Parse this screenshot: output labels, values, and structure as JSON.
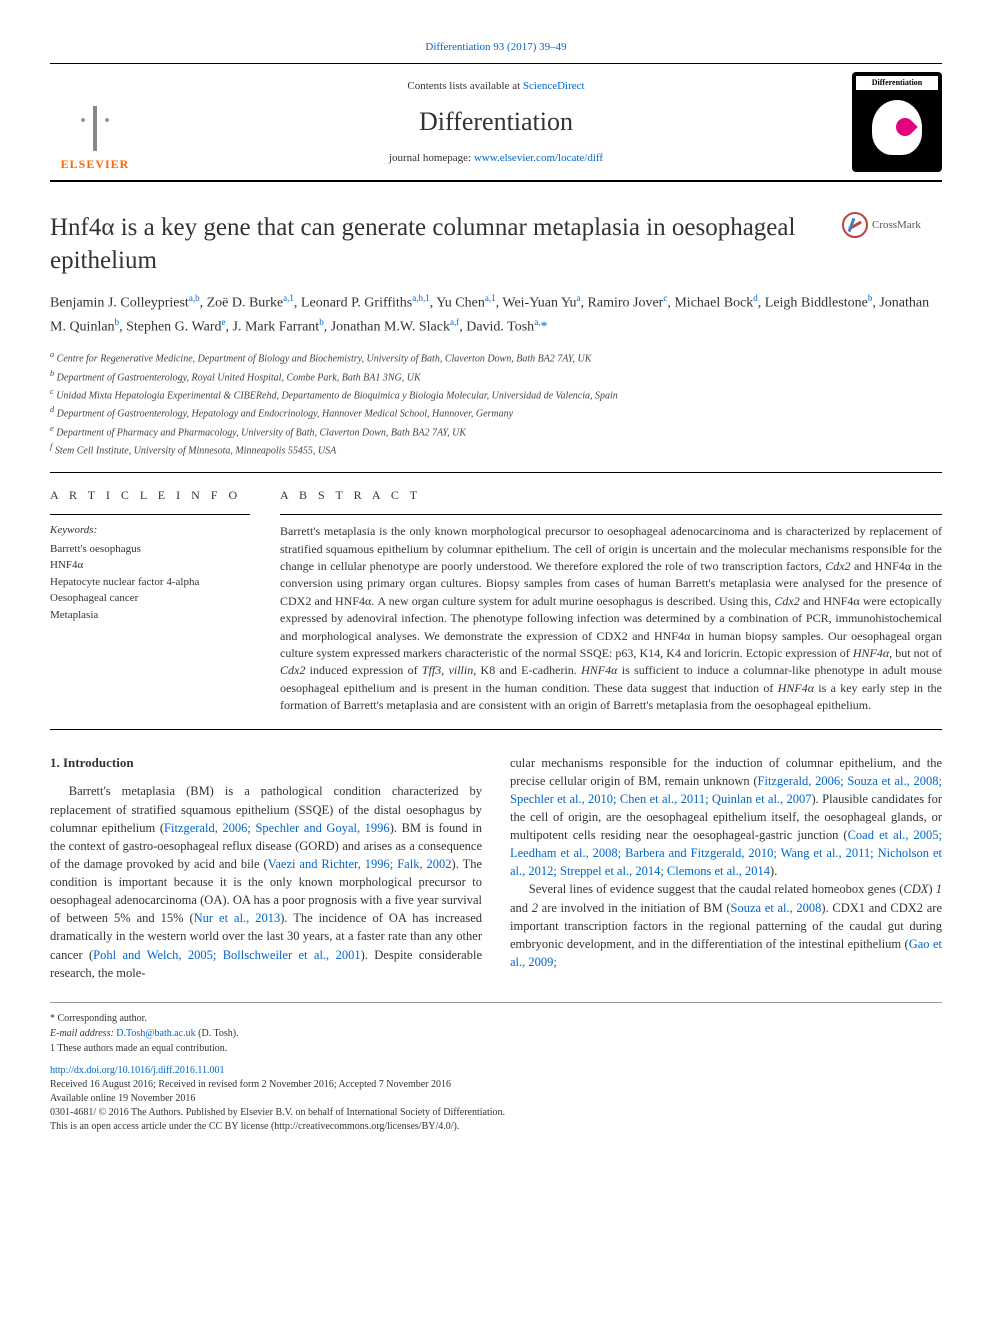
{
  "top_citation": "Differentiation 93 (2017) 39–49",
  "header": {
    "contents_prefix": "Contents lists available at ",
    "contents_link": "ScienceDirect",
    "journal": "Differentiation",
    "homepage_prefix": "journal homepage: ",
    "homepage_url": "www.elsevier.com/locate/diff",
    "elsevier_label": "ELSEVIER",
    "right_label": "Differentiation"
  },
  "crossmark_label": "CrossMark",
  "title": "Hnf4α is a key gene that can generate columnar metaplasia in oesophageal epithelium",
  "authors_html": "Benjamin J. Colleypriest<sup>a,b</sup>, Zoë D. Burke<sup>a,1</sup>, Leonard P. Griffiths<sup>a,b,1</sup>, Yu Chen<sup>a,1</sup>, Wei-Yuan Yu<sup>a</sup>, Ramiro Jover<sup>c</sup>, Michael Bock<sup>d</sup>, Leigh Biddlestone<sup>b</sup>, Jonathan M. Quinlan<sup>b</sup>, Stephen G. Ward<sup>e</sup>, J. Mark Farrant<sup>b</sup>, Jonathan M.W. Slack<sup>a,f</sup>, David. Tosh<sup>a,</sup><a>*</a>",
  "affiliations": [
    "a Centre for Regenerative Medicine, Department of Biology and Biochemistry, University of Bath, Claverton Down, Bath BA2 7AY, UK",
    "b Department of Gastroenterology, Royal United Hospital, Combe Park, Bath BA1 3NG, UK",
    "c Unidad Mixta Hepatologia Experimental & CIBERehd, Departamento de Bioquimica y Biologia Molecular, Universidad de Valencia, Spain",
    "d Department of Gastroenterology, Hepatology and Endocrinology, Hannover Medical School, Hannover, Germany",
    "e Department of Pharmacy and Pharmacology, University of Bath, Claverton Down, Bath BA2 7AY, UK",
    "f Stem Cell Institute, University of Minnesota, Minneapolis 55455, USA"
  ],
  "article_info_heading": "A R T I C L E  I N F O",
  "keywords_label": "Keywords:",
  "keywords": [
    "Barrett's oesophagus",
    "HNF4α",
    "Hepatocyte nuclear factor 4-alpha",
    "Oesophageal cancer",
    "Metaplasia"
  ],
  "abstract_heading": "A B S T R A C T",
  "abstract": "Barrett's metaplasia is the only known morphological precursor to oesophageal adenocarcinoma and is characterized by replacement of stratified squamous epithelium by columnar epithelium. The cell of origin is uncertain and the molecular mechanisms responsible for the change in cellular phenotype are poorly understood. We therefore explored the role of two transcription factors, Cdx2 and HNF4α in the conversion using primary organ cultures. Biopsy samples from cases of human Barrett's metaplasia were analysed for the presence of CDX2 and HNF4α. A new organ culture system for adult murine oesophagus is described. Using this, Cdx2 and HNF4α were ectopically expressed by adenoviral infection. The phenotype following infection was determined by a combination of PCR, immunohistochemical and morphological analyses. We demonstrate the expression of CDX2 and HNF4α in human biopsy samples. Our oesophageal organ culture system expressed markers characteristic of the normal SSQE: p63, K14, K4 and loricrin. Ectopic expression of HNF4α, but not of Cdx2 induced expression of Tff3, villin, K8 and E-cadherin. HNF4α is sufficient to induce a columnar-like phenotype in adult mouse oesophageal epithelium and is present in the human condition. These data suggest that induction of HNF4α is a key early step in the formation of Barrett's metaplasia and are consistent with an origin of Barrett's metaplasia from the oesophageal epithelium.",
  "intro_heading": "1. Introduction",
  "col1_html": "Barrett's metaplasia (BM) is a pathological condition characterized by replacement of stratified squamous epithelium (SSQE) of the distal oesophagus by columnar epithelium (<a>Fitzgerald, 2006; Spechler and Goyal, 1996</a>). BM is found in the context of gastro-oesophageal reflux disease (GORD) and arises as a consequence of the damage provoked by acid and bile (<a>Vaezi and Richter, 1996; Falk, 2002</a>). The condition is important because it is the only known morphological precursor to oesophageal adenocarcinoma (OA). OA has a poor prognosis with a five year survival of between 5% and 15% (<a>Nur et al., 2013</a>). The incidence of OA has increased dramatically in the western world over the last 30 years, at a faster rate than any other cancer (<a>Pohl and Welch, 2005; Bollschweiler et al., 2001</a>). Despite considerable research, the mole-",
  "col2_html": "cular mechanisms responsible for the induction of columnar epithelium, and the precise cellular origin of BM, remain unknown (<a>Fitzgerald, 2006; Souza et al., 2008; Spechler et al., 2010; Chen et al., 2011; Quinlan et al., 2007</a>). Plausible candidates for the cell of origin, are the oesophageal epithelium itself, the oesophageal glands, or multipotent cells residing near the oesophageal-gastric junction (<a>Coad et al., 2005; Leedham et al., 2008; Barbera and Fitzgerald, 2010; Wang et al., 2011; Nicholson et al., 2012; Streppel et al., 2014; Clemons et al., 2014</a>).",
  "col2_p2_html": "Several lines of evidence suggest that the caudal related homeobox genes (<i>CDX</i>) <i>1</i> and <i>2</i> are involved in the initiation of BM (<a>Souza et al., 2008</a>). CDX1 and CDX2 are important transcription factors in the regional patterning of the caudal gut during embryonic development, and in the differentiation of the intestinal epithelium (<a>Gao et al., 2009;</a>",
  "footer": {
    "corresponding": "* Corresponding author.",
    "email_label": "E-mail address: ",
    "email": "D.Tosh@bath.ac.uk",
    "email_suffix": " (D. Tosh).",
    "equal": "1 These authors made an equal contribution.",
    "doi": "http://dx.doi.org/10.1016/j.diff.2016.11.001",
    "received": "Received 16 August 2016; Received in revised form 2 November 2016; Accepted 7 November 2016",
    "available": "Available online 19 November 2016",
    "copyright": "0301-4681/ © 2016 The Authors. Published by Elsevier B.V. on behalf of International Society of Differentiation.",
    "license": "This is an open access article under the CC BY license (http://creativecommons.org/licenses/BY/4.0/)."
  },
  "colors": {
    "link": "#0066cc",
    "text": "#333333",
    "elsevier_orange": "#ff6600"
  }
}
